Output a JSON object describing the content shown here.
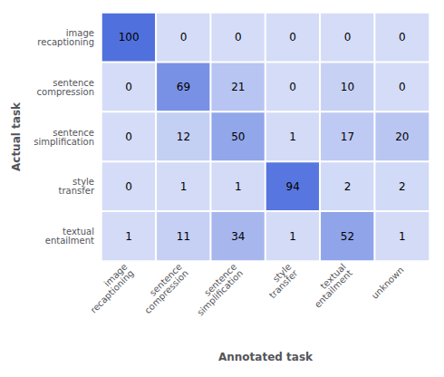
{
  "chart_data": {
    "type": "heatmap",
    "xlabel": "Annotated task",
    "ylabel": "Actual task",
    "x": [
      "image\nrecaptioning",
      "sentence\ncompression",
      "sentence\nsimplification",
      "style\ntransfer",
      "textual\nentailment",
      "unknown"
    ],
    "y": [
      "image\nrecaptioning",
      "sentence\ncompression",
      "sentence\nsimplification",
      "style\ntransfer",
      "textual\nentailment"
    ],
    "values": [
      [
        100,
        0,
        0,
        0,
        0,
        0
      ],
      [
        0,
        69,
        21,
        0,
        10,
        0
      ],
      [
        0,
        12,
        50,
        1,
        17,
        20
      ],
      [
        0,
        1,
        1,
        94,
        2,
        2
      ],
      [
        1,
        11,
        34,
        1,
        52,
        1
      ]
    ],
    "zlim": [
      0,
      100
    ],
    "data_labels": true
  }
}
